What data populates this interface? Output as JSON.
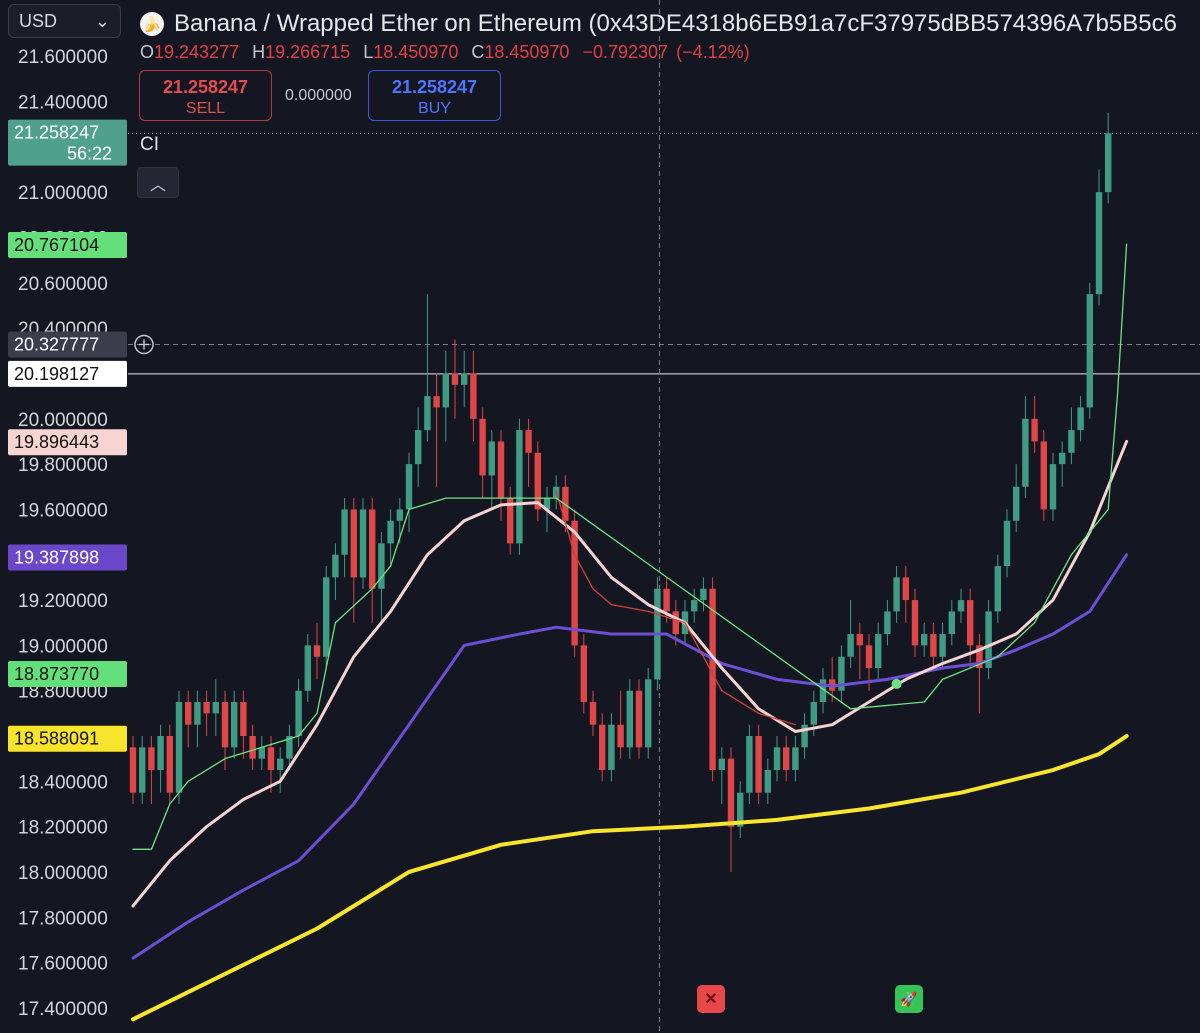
{
  "currency_selector": {
    "label": "USD"
  },
  "header": {
    "title": "Banana / Wrapped Ether on Ethereum (0x43DE4318b6EB91a7cF37975dBB574396A7b5B5c6",
    "ohlc": [
      {
        "key": "O",
        "value": "19.243277"
      },
      {
        "key": "H",
        "value": "19.266715"
      },
      {
        "key": "L",
        "value": "18.450970"
      },
      {
        "key": "C",
        "value": "18.450970"
      }
    ],
    "change": "−0.792307",
    "change_pct": "(−4.12%)"
  },
  "trade": {
    "sell_price": "21.258247",
    "sell_label": "SELL",
    "spread": "0.000000",
    "buy_price": "21.258247",
    "buy_label": "BUY"
  },
  "indicator_label": "CI",
  "colors": {
    "background": "#141721",
    "up": "#3f9c84",
    "down": "#e04548",
    "ema_fast": "#f4d3d0",
    "ema_mid": "#6c4fd4",
    "ema_slow": "#f8e62c",
    "trail_green": "#6fe383",
    "trail_red": "#d2403b"
  },
  "chart_data": {
    "type": "line",
    "ylim": [
      17.3,
      21.75
    ],
    "y_ticks": [
      "21.600000",
      "21.400000",
      "21.000000",
      "20.800000",
      "20.600000",
      "20.400000",
      "20.000000",
      "19.800000",
      "19.600000",
      "19.200000",
      "19.000000",
      "18.800000",
      "18.400000",
      "18.200000",
      "18.000000",
      "17.800000",
      "17.600000",
      "17.400000"
    ],
    "y_tick_values": [
      21.6,
      21.4,
      21.0,
      20.8,
      20.6,
      20.4,
      20.0,
      19.8,
      19.6,
      19.2,
      19.0,
      18.8,
      18.4,
      18.2,
      18.0,
      17.8,
      17.6,
      17.4
    ],
    "price_labels": [
      {
        "name": "last-price",
        "value": 21.258247,
        "text": "21.258247",
        "sub": "56:22",
        "color": "#4fa18d"
      },
      {
        "name": "trail-green",
        "value": 20.767104,
        "text": "20.767104",
        "color": "#64e07b"
      },
      {
        "name": "crosshair",
        "value": 20.327777,
        "text": "20.327777",
        "color": "#3a3d4a"
      },
      {
        "name": "horizontal-line",
        "value": 20.198127,
        "text": "20.198127",
        "color": "#ffffff"
      },
      {
        "name": "ema-fast",
        "value": 19.896443,
        "text": "19.896443",
        "color": "#f5d4d1"
      },
      {
        "name": "ema-mid",
        "value": 19.387898,
        "text": "19.387898",
        "color": "#6b48c9"
      },
      {
        "name": "trail-green-2",
        "value": 18.87377,
        "text": "18.873770",
        "color": "#62e07a"
      },
      {
        "name": "ema-slow",
        "value": 18.588091,
        "text": "18.588091",
        "color": "#f8e42a"
      }
    ],
    "crosshair_x_index": 57,
    "candles": [
      [
        18.55,
        18.35,
        18.6,
        18.3
      ],
      [
        18.35,
        18.55,
        18.6,
        18.3
      ],
      [
        18.55,
        18.45,
        18.6,
        18.3
      ],
      [
        18.45,
        18.6,
        18.65,
        18.35
      ],
      [
        18.6,
        18.35,
        18.65,
        18.3
      ],
      [
        18.35,
        18.75,
        18.8,
        18.3
      ],
      [
        18.75,
        18.65,
        18.8,
        18.55
      ],
      [
        18.65,
        18.75,
        18.8,
        18.55
      ],
      [
        18.75,
        18.7,
        18.8,
        18.6
      ],
      [
        18.7,
        18.75,
        18.85,
        18.6
      ],
      [
        18.75,
        18.55,
        18.8,
        18.45
      ],
      [
        18.55,
        18.75,
        18.8,
        18.5
      ],
      [
        18.75,
        18.6,
        18.8,
        18.5
      ],
      [
        18.6,
        18.5,
        18.65,
        18.45
      ],
      [
        18.5,
        18.55,
        18.6,
        18.45
      ],
      [
        18.55,
        18.45,
        18.6,
        18.35
      ],
      [
        18.45,
        18.5,
        18.55,
        18.35
      ],
      [
        18.5,
        18.6,
        18.65,
        18.45
      ],
      [
        18.6,
        18.8,
        18.85,
        18.55
      ],
      [
        18.8,
        19.0,
        19.05,
        18.75
      ],
      [
        19.0,
        18.95,
        19.1,
        18.85
      ],
      [
        18.95,
        19.3,
        19.35,
        18.9
      ],
      [
        19.3,
        19.4,
        19.45,
        19.2
      ],
      [
        19.4,
        19.6,
        19.65,
        19.3
      ],
      [
        19.6,
        19.3,
        19.65,
        19.1
      ],
      [
        19.3,
        19.6,
        19.65,
        19.25
      ],
      [
        19.6,
        19.25,
        19.65,
        19.1
      ],
      [
        19.25,
        19.45,
        19.5,
        19.1
      ],
      [
        19.45,
        19.55,
        19.6,
        19.35
      ],
      [
        19.55,
        19.6,
        19.65,
        19.45
      ],
      [
        19.6,
        19.8,
        19.85,
        19.5
      ],
      [
        19.8,
        19.95,
        20.05,
        19.7
      ],
      [
        19.95,
        20.1,
        20.55,
        19.9
      ],
      [
        20.1,
        20.05,
        20.2,
        19.7
      ],
      [
        20.05,
        20.2,
        20.3,
        19.9
      ],
      [
        20.2,
        20.15,
        20.35,
        20.0
      ],
      [
        20.15,
        20.2,
        20.3,
        20.05
      ],
      [
        20.2,
        20.0,
        20.3,
        19.9
      ],
      [
        20.0,
        19.75,
        20.05,
        19.65
      ],
      [
        19.75,
        19.9,
        19.95,
        19.6
      ],
      [
        19.9,
        19.65,
        19.95,
        19.55
      ],
      [
        19.65,
        19.45,
        19.7,
        19.4
      ],
      [
        19.45,
        19.95,
        20.0,
        19.4
      ],
      [
        19.95,
        19.85,
        20.0,
        19.7
      ],
      [
        19.85,
        19.6,
        19.9,
        19.55
      ],
      [
        19.6,
        19.65,
        19.7,
        19.5
      ],
      [
        19.65,
        19.7,
        19.75,
        19.6
      ],
      [
        19.7,
        19.55,
        19.75,
        19.5
      ],
      [
        19.55,
        19.0,
        19.6,
        18.95
      ],
      [
        19.0,
        18.75,
        19.05,
        18.7
      ],
      [
        18.75,
        18.65,
        18.8,
        18.6
      ],
      [
        18.65,
        18.45,
        18.7,
        18.4
      ],
      [
        18.45,
        18.65,
        18.7,
        18.4
      ],
      [
        18.65,
        18.55,
        18.8,
        18.5
      ],
      [
        18.55,
        18.8,
        18.85,
        18.5
      ],
      [
        18.8,
        18.55,
        18.85,
        18.5
      ],
      [
        18.55,
        18.85,
        18.9,
        18.5
      ],
      [
        18.85,
        19.25,
        19.3,
        18.8
      ],
      [
        19.25,
        19.15,
        19.3,
        19.1
      ],
      [
        19.15,
        19.05,
        19.2,
        19.0
      ],
      [
        19.05,
        19.15,
        19.2,
        19.0
      ],
      [
        19.15,
        19.2,
        19.25,
        19.1
      ],
      [
        19.2,
        19.25,
        19.3,
        19.15
      ],
      [
        19.25,
        18.45,
        19.3,
        18.4
      ],
      [
        18.45,
        18.5,
        18.55,
        18.3
      ],
      [
        18.5,
        18.2,
        18.55,
        18.0
      ],
      [
        18.2,
        18.35,
        18.4,
        18.15
      ],
      [
        18.35,
        18.6,
        18.65,
        18.3
      ],
      [
        18.6,
        18.35,
        18.65,
        18.3
      ],
      [
        18.35,
        18.45,
        18.5,
        18.3
      ],
      [
        18.45,
        18.55,
        18.6,
        18.4
      ],
      [
        18.55,
        18.45,
        18.6,
        18.4
      ],
      [
        18.45,
        18.55,
        18.6,
        18.4
      ],
      [
        18.55,
        18.65,
        18.7,
        18.5
      ],
      [
        18.65,
        18.75,
        18.8,
        18.6
      ],
      [
        18.75,
        18.85,
        18.9,
        18.7
      ],
      [
        18.85,
        18.8,
        18.95,
        18.75
      ],
      [
        18.8,
        18.95,
        19.0,
        18.75
      ],
      [
        18.95,
        19.05,
        19.2,
        18.9
      ],
      [
        19.05,
        19.0,
        19.1,
        18.85
      ],
      [
        19.0,
        18.9,
        19.05,
        18.8
      ],
      [
        18.9,
        19.05,
        19.1,
        18.85
      ],
      [
        19.05,
        19.15,
        19.2,
        19.0
      ],
      [
        19.15,
        19.3,
        19.35,
        19.1
      ],
      [
        19.3,
        19.2,
        19.35,
        19.1
      ],
      [
        19.2,
        19.0,
        19.25,
        18.95
      ],
      [
        19.0,
        19.05,
        19.1,
        18.95
      ],
      [
        19.05,
        18.95,
        19.1,
        18.9
      ],
      [
        18.95,
        19.05,
        19.1,
        18.9
      ],
      [
        19.05,
        19.15,
        19.2,
        19.0
      ],
      [
        19.15,
        19.2,
        19.25,
        19.1
      ],
      [
        19.2,
        19.0,
        19.25,
        18.9
      ],
      [
        19.0,
        18.9,
        19.05,
        18.7
      ],
      [
        18.9,
        19.15,
        19.2,
        18.85
      ],
      [
        19.15,
        19.35,
        19.4,
        19.1
      ],
      [
        19.35,
        19.55,
        19.6,
        19.3
      ],
      [
        19.55,
        19.7,
        19.8,
        19.5
      ],
      [
        19.7,
        20.0,
        20.1,
        19.65
      ],
      [
        20.0,
        19.9,
        20.1,
        19.85
      ],
      [
        19.9,
        19.6,
        19.95,
        19.55
      ],
      [
        19.6,
        19.8,
        19.85,
        19.55
      ],
      [
        19.8,
        19.85,
        19.9,
        19.7
      ],
      [
        19.85,
        19.95,
        20.05,
        19.8
      ],
      [
        19.95,
        20.05,
        20.1,
        19.9
      ],
      [
        20.05,
        20.55,
        20.6,
        20.0
      ],
      [
        20.55,
        21.0,
        21.1,
        20.5
      ],
      [
        21.0,
        21.26,
        21.35,
        20.95
      ]
    ],
    "ema_fast": [
      [
        0,
        17.85
      ],
      [
        4,
        18.05
      ],
      [
        8,
        18.2
      ],
      [
        12,
        18.32
      ],
      [
        16,
        18.4
      ],
      [
        20,
        18.65
      ],
      [
        24,
        18.95
      ],
      [
        28,
        19.15
      ],
      [
        32,
        19.4
      ],
      [
        36,
        19.55
      ],
      [
        40,
        19.62
      ],
      [
        44,
        19.63
      ],
      [
        48,
        19.5
      ],
      [
        52,
        19.3
      ],
      [
        56,
        19.18
      ],
      [
        60,
        19.1
      ],
      [
        64,
        18.9
      ],
      [
        68,
        18.72
      ],
      [
        72,
        18.62
      ],
      [
        76,
        18.65
      ],
      [
        80,
        18.75
      ],
      [
        84,
        18.85
      ],
      [
        88,
        18.92
      ],
      [
        92,
        18.98
      ],
      [
        96,
        19.05
      ],
      [
        100,
        19.2
      ],
      [
        104,
        19.5
      ],
      [
        108,
        19.9
      ]
    ],
    "ema_mid": [
      [
        0,
        17.62
      ],
      [
        6,
        17.78
      ],
      [
        12,
        17.92
      ],
      [
        18,
        18.05
      ],
      [
        24,
        18.3
      ],
      [
        30,
        18.65
      ],
      [
        36,
        19.0
      ],
      [
        42,
        19.05
      ],
      [
        46,
        19.08
      ],
      [
        52,
        19.05
      ],
      [
        58,
        19.05
      ],
      [
        64,
        18.92
      ],
      [
        70,
        18.85
      ],
      [
        76,
        18.82
      ],
      [
        82,
        18.85
      ],
      [
        88,
        18.9
      ],
      [
        92,
        18.92
      ],
      [
        96,
        18.98
      ],
      [
        100,
        19.05
      ],
      [
        104,
        19.15
      ],
      [
        108,
        19.4
      ]
    ],
    "ema_slow": [
      [
        0,
        17.35
      ],
      [
        10,
        17.55
      ],
      [
        20,
        17.75
      ],
      [
        30,
        18.0
      ],
      [
        40,
        18.12
      ],
      [
        50,
        18.18
      ],
      [
        60,
        18.2
      ],
      [
        70,
        18.23
      ],
      [
        80,
        18.28
      ],
      [
        90,
        18.35
      ],
      [
        100,
        18.45
      ],
      [
        105,
        18.52
      ],
      [
        108,
        18.6
      ]
    ],
    "trail_green": [
      [
        0,
        18.1
      ],
      [
        2,
        18.1
      ],
      [
        4,
        18.3
      ],
      [
        6,
        18.4
      ],
      [
        10,
        18.5
      ],
      [
        14,
        18.55
      ],
      [
        18,
        18.6
      ],
      [
        20,
        18.7
      ],
      [
        22,
        19.1
      ],
      [
        26,
        19.25
      ],
      [
        28,
        19.35
      ],
      [
        30,
        19.6
      ],
      [
        34,
        19.65
      ],
      [
        44,
        19.65
      ],
      [
        46,
        19.65
      ],
      [
        78,
        18.72
      ],
      [
        86,
        18.75
      ],
      [
        88,
        18.85
      ],
      [
        94,
        18.95
      ],
      [
        98,
        19.1
      ],
      [
        102,
        19.4
      ],
      [
        106,
        19.6
      ],
      [
        107,
        20.1
      ],
      [
        108,
        20.77
      ]
    ],
    "trail_red": [
      [
        46,
        19.68
      ],
      [
        48,
        19.4
      ],
      [
        50,
        19.25
      ],
      [
        52,
        19.18
      ],
      [
        56,
        19.15
      ],
      [
        60,
        19.1
      ],
      [
        64,
        18.8
      ],
      [
        68,
        18.7
      ],
      [
        72,
        18.65
      ]
    ]
  }
}
